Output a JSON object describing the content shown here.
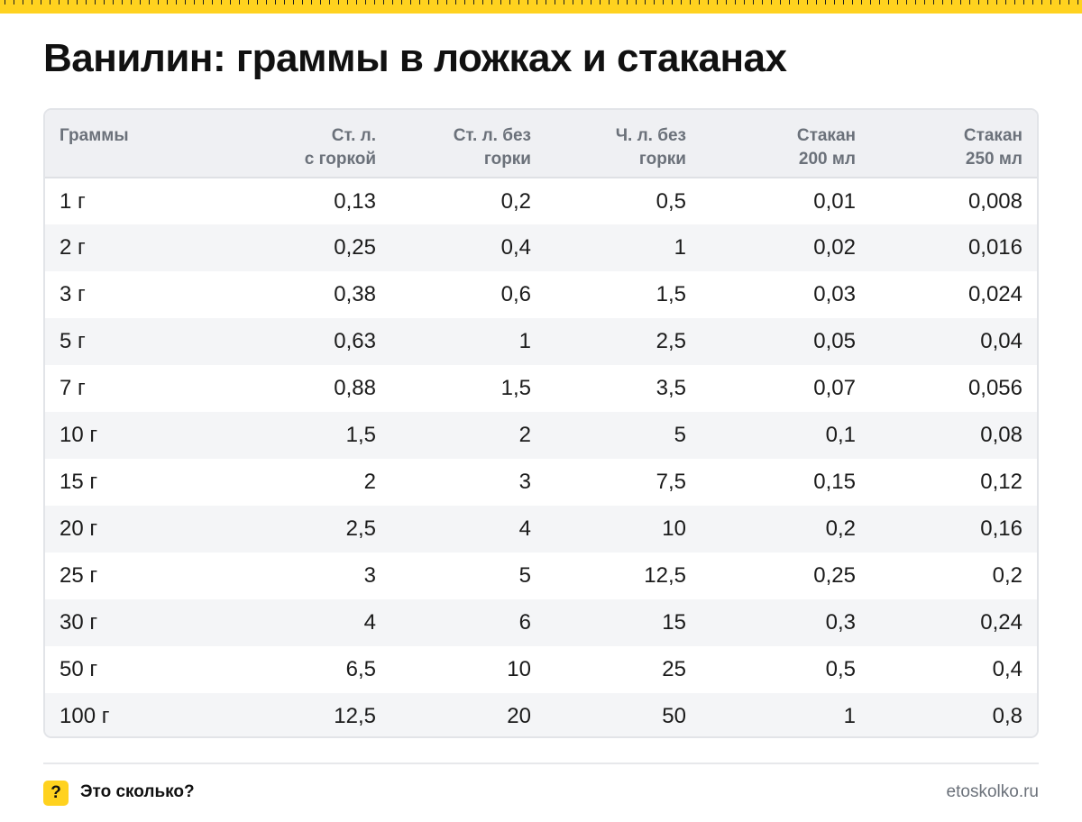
{
  "title": "Ванилин: граммы в ложках и стаканах",
  "table": {
    "headers": [
      [
        "Граммы"
      ],
      [
        "Ст. л.",
        "с горкой"
      ],
      [
        "Ст. л. без",
        "горки"
      ],
      [
        "Ч. л. без",
        "горки"
      ],
      [
        "Стакан",
        "200 мл"
      ],
      [
        "Стакан",
        "250 мл"
      ]
    ],
    "rows": [
      [
        "1 г",
        "0,13",
        "0,2",
        "0,5",
        "0,01",
        "0,008"
      ],
      [
        "2 г",
        "0,25",
        "0,4",
        "1",
        "0,02",
        "0,016"
      ],
      [
        "3 г",
        "0,38",
        "0,6",
        "1,5",
        "0,03",
        "0,024"
      ],
      [
        "5 г",
        "0,63",
        "1",
        "2,5",
        "0,05",
        "0,04"
      ],
      [
        "7 г",
        "0,88",
        "1,5",
        "3,5",
        "0,07",
        "0,056"
      ],
      [
        "10 г",
        "1,5",
        "2",
        "5",
        "0,1",
        "0,08"
      ],
      [
        "15 г",
        "2",
        "3",
        "7,5",
        "0,15",
        "0,12"
      ],
      [
        "20 г",
        "2,5",
        "4",
        "10",
        "0,2",
        "0,16"
      ],
      [
        "25 г",
        "3",
        "5",
        "12,5",
        "0,25",
        "0,2"
      ],
      [
        "30 г",
        "4",
        "6",
        "15",
        "0,3",
        "0,24"
      ],
      [
        "50 г",
        "6,5",
        "10",
        "25",
        "0,5",
        "0,4"
      ],
      [
        "100 г",
        "12,5",
        "20",
        "50",
        "1",
        "0,8"
      ]
    ]
  },
  "footer": {
    "badge": "?",
    "brand": "Это сколько?",
    "site": "etoskolko.ru"
  },
  "colors": {
    "accent": "#ffd21f",
    "header_bg": "#eff0f3",
    "stripe_bg": "#f4f5f7",
    "muted_text": "#6b717a"
  }
}
